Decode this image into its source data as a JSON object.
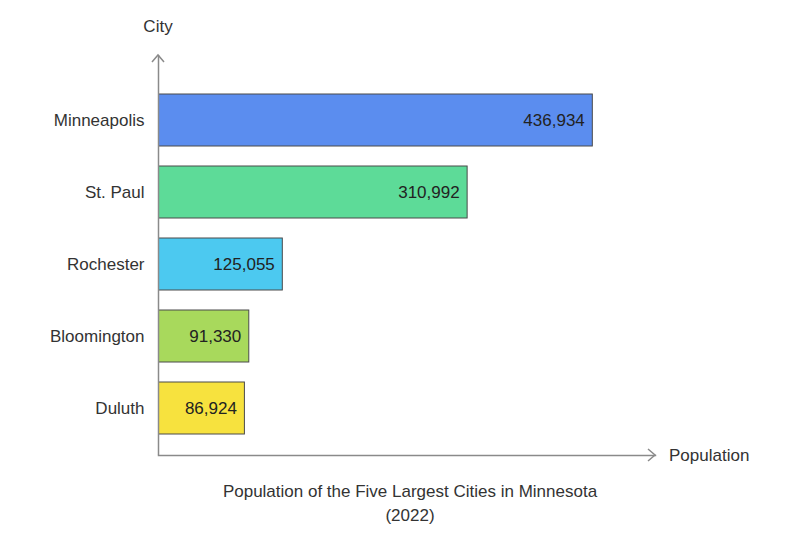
{
  "chart_data": {
    "type": "bar",
    "title": "Population of the Five Largest Cities in Minnesota (2022)",
    "orientation": "horizontal",
    "x_label": "Population",
    "y_label": "City",
    "categories": [
      "Minneapolis",
      "St. Paul",
      "Rochester",
      "Bloomington",
      "Duluth"
    ],
    "values": [
      436934,
      310992,
      125055,
      91330,
      86924
    ],
    "value_labels": [
      "436,934",
      "310,992",
      "125,055",
      "91,330",
      "86,924"
    ],
    "colors": [
      "#5b8def",
      "#5ddb98",
      "#4cc9f0",
      "#a8d95c",
      "#f7e23e"
    ],
    "xlim": [
      0,
      500000
    ],
    "grid": false,
    "data_labels": true,
    "tick_labels": "y"
  }
}
